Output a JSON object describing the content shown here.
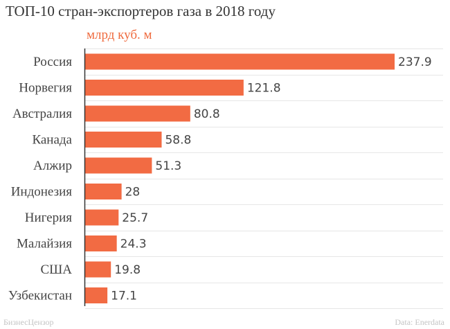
{
  "title": "ТОП-10 стран-экспортеров газа в 2018 году",
  "unit": "млрд куб. м",
  "footer": {
    "left": "БизнесЦензор",
    "right": "Data: Enerdata"
  },
  "colors": {
    "bar": "#f26b43",
    "grid": "#e6e6e6",
    "axis": "#333333"
  },
  "chart_data": {
    "type": "bar",
    "orientation": "horizontal",
    "title": "ТОП-10 стран-экспортеров газа в 2018 году",
    "unit": "млрд куб. м",
    "categories": [
      "Россия",
      "Норвегия",
      "Австралия",
      "Канада",
      "Алжир",
      "Индонезия",
      "Нигерия",
      "Малайзия",
      "США",
      "Узбекистан"
    ],
    "values": [
      237.9,
      121.8,
      80.8,
      58.8,
      51.3,
      28,
      25.7,
      24.3,
      19.8,
      17.1
    ],
    "value_labels": [
      "237.9",
      "121.8",
      "80.8",
      "58.8",
      "51.3",
      "28",
      "25.7",
      "24.3",
      "19.8",
      "17.1"
    ],
    "xlim": [
      0,
      237.9
    ],
    "grid": true,
    "source": "Data: Enerdata"
  }
}
